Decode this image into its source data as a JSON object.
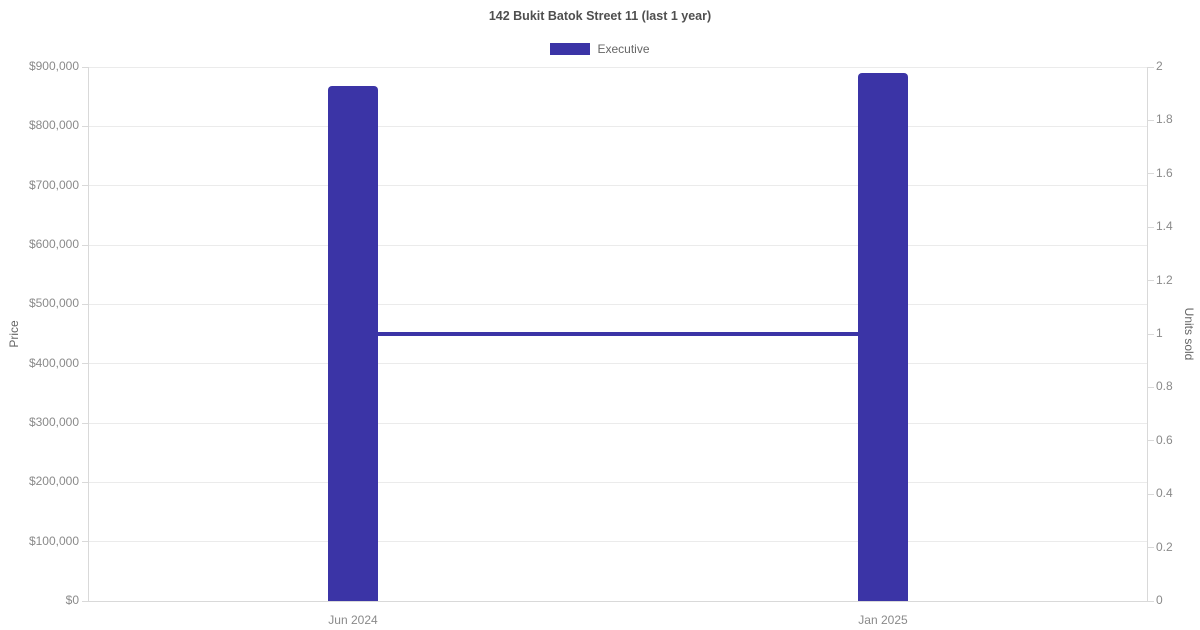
{
  "title": "142 Bukit Batok Street 11 (last 1 year)",
  "legend": {
    "items": [
      {
        "label": "Executive",
        "color": "#3b34a6"
      }
    ]
  },
  "chart_data": {
    "type": "bar",
    "title": "142 Bukit Batok Street 11 (last 1 year)",
    "categories": [
      "Jun 2024",
      "Jan 2025"
    ],
    "series": [
      {
        "name": "Executive",
        "type": "bar",
        "yaxis": "left",
        "values": [
          868000,
          890000
        ],
        "color": "#3b34a6"
      },
      {
        "name": "Units sold",
        "type": "line",
        "yaxis": "right",
        "values": [
          1,
          1
        ],
        "color": "#3b34a6",
        "line_width": 4
      }
    ],
    "left_axis": {
      "label": "Price",
      "min": 0,
      "max": 900000,
      "step": 100000,
      "tick_labels": [
        "$0",
        "$100,000",
        "$200,000",
        "$300,000",
        "$400,000",
        "$500,000",
        "$600,000",
        "$700,000",
        "$800,000",
        "$900,000"
      ]
    },
    "right_axis": {
      "label": "Units sold",
      "min": 0,
      "max": 2,
      "step": 0.2,
      "tick_labels": [
        "0",
        "0.2",
        "0.4",
        "0.6",
        "0.8",
        "1",
        "1.2",
        "1.4",
        "1.6",
        "1.8",
        "2"
      ]
    },
    "grid": true,
    "legend_position": "top",
    "background_color": "#ffffff",
    "grid_color": "#ebebeb",
    "axis_line_color": "#d9d9d9",
    "tick_text_color": "#8a8a8a",
    "title_color": "#4f4f4f"
  }
}
